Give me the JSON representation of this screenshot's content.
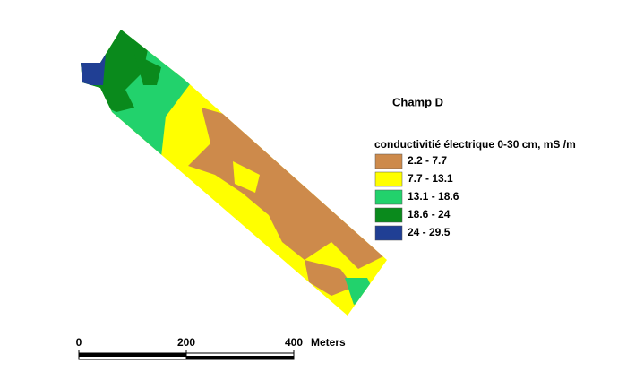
{
  "title": "Champ D",
  "legend": {
    "title": "conductivitié électrique 0-30 cm, mS /m",
    "items": [
      {
        "label": "2.2 - 7.7",
        "color": "#cd8a4b"
      },
      {
        "label": "7.7 - 13.1",
        "color": "#ffff00"
      },
      {
        "label": "13.1 - 18.6",
        "color": "#22d26c"
      },
      {
        "label": "18.6 - 24",
        "color": "#0a8a1c"
      },
      {
        "label": "24 - 29.5",
        "color": "#203f94"
      }
    ]
  },
  "scale_bar": {
    "ticks": [
      0,
      200,
      400
    ],
    "unit": "Meters"
  }
}
